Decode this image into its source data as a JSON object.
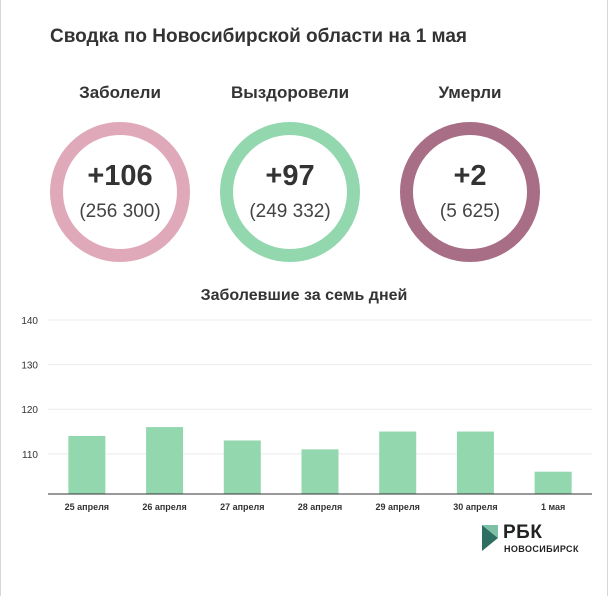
{
  "title": "Сводка по Новосибирской области на 1 мая",
  "stats": [
    {
      "label": "Заболели",
      "delta": "+106",
      "total": "(256 300)",
      "color": "#e0a9ba"
    },
    {
      "label": "Выздоровели",
      "delta": "+97",
      "total": "(249 332)",
      "color": "#93d7ae"
    },
    {
      "label": "Умерли",
      "delta": "+2",
      "total": "(5 625)",
      "color": "#a86e86"
    }
  ],
  "chart_data": {
    "type": "bar",
    "title": "Заболевшие за семь дней",
    "categories": [
      "25 апреля",
      "26 апреля",
      "27 апреля",
      "28 апреля",
      "29 апреля",
      "30 апреля",
      "1 мая"
    ],
    "values": [
      114,
      116,
      113,
      111,
      115,
      115,
      106
    ],
    "yticks": [
      110,
      120,
      130,
      140
    ],
    "ylim": [
      101,
      140
    ],
    "grid": true,
    "bar_color": "#93d7ae"
  },
  "logo": {
    "main": "РБК",
    "sub": "НОВОСИБИРСК"
  }
}
